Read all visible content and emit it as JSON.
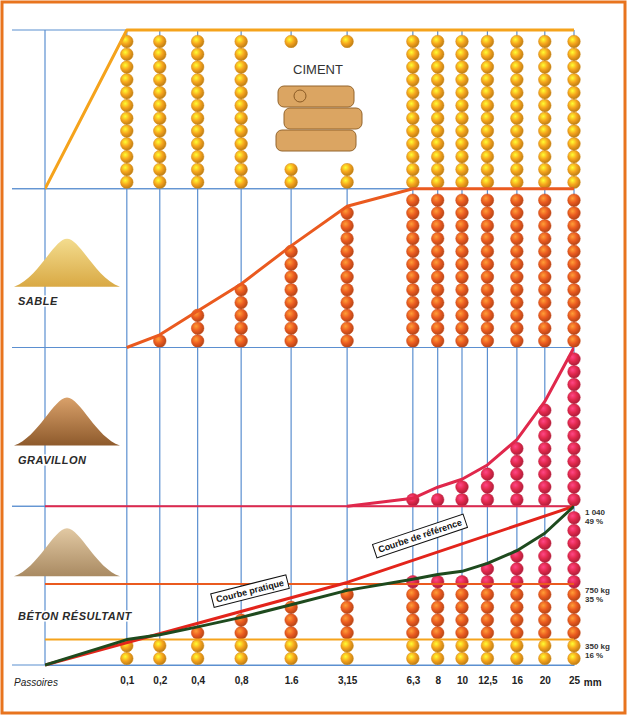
{
  "chart_data": {
    "type": "line",
    "xlabel": "Passoires",
    "xunit": "mm",
    "xlim": [
      0.01,
      25
    ],
    "xticks": [
      {
        "value": 0.1,
        "label": "0,1"
      },
      {
        "value": 0.2,
        "label": "0,2"
      },
      {
        "value": 0.4,
        "label": "0,4"
      },
      {
        "value": 0.8,
        "label": "0,8"
      },
      {
        "value": 1.6,
        "label": "1.6"
      },
      {
        "value": 3.15,
        "label": "3,15"
      },
      {
        "value": 6.3,
        "label": "6,3"
      },
      8,
      10,
      {
        "value": 12.5,
        "label": "12,5"
      },
      16,
      20,
      25
    ],
    "ylim": [
      0,
      100
    ],
    "yticks": [
      0,
      100
    ],
    "grid": true,
    "tick_labels": "x",
    "panels": [
      {
        "title": "CIMENT",
        "color": "#f5a31c",
        "marker": "ball",
        "x": [
          0.01,
          0.1,
          0.2,
          0.4,
          0.8,
          1.6,
          3.15,
          6.3,
          8,
          10,
          12.5,
          16,
          20,
          25
        ],
        "values": [
          0,
          100,
          100,
          100,
          100,
          100,
          100,
          100,
          100,
          100,
          100,
          100,
          100,
          100
        ]
      },
      {
        "title": "SABLE",
        "color": "#ea5a1f",
        "marker": "ball",
        "x": [
          0.1,
          0.2,
          0.4,
          0.8,
          1.6,
          3.15,
          6.3,
          8,
          10,
          12.5,
          16,
          20,
          25
        ],
        "values": [
          0,
          8,
          23,
          40,
          64,
          89,
          100,
          100,
          100,
          100,
          100,
          100,
          100
        ]
      },
      {
        "title": "GRAVILLON",
        "color": "#e0284c",
        "marker": "ball",
        "x": [
          0.1,
          0.2,
          0.4,
          0.8,
          1.6,
          3.15,
          6.3,
          8,
          10,
          12.5,
          16,
          20,
          25
        ],
        "values": [
          null,
          null,
          null,
          null,
          null,
          0,
          5,
          12,
          17,
          26,
          42,
          66,
          100
        ]
      },
      {
        "title": "BÉTON RÉSULTANT",
        "series": [
          {
            "name": "Courbe de référence",
            "color": "#e3241b",
            "x": [
              0.01,
              3.15,
              25
            ],
            "values": [
              0,
              52,
              100
            ]
          },
          {
            "name": "Courbe pratique",
            "color": "#1e4a1e",
            "marker": "ball",
            "x": [
              0.01,
              0.1,
              0.2,
              0.4,
              0.8,
              1.6,
              3.15,
              6.3,
              8,
              10,
              12.5,
              16,
              20,
              25
            ],
            "values": [
              0,
              16,
              19,
              24,
              30,
              38,
              47,
              54,
              57,
              59,
              64,
              72,
              83,
              100
            ]
          }
        ],
        "composition": {
          "masses": [
            "350 kg",
            "750 kg",
            "1 040"
          ],
          "values": [
            16,
            35,
            49
          ],
          "value_labels": [
            "16 %",
            "35 %",
            "49 %"
          ],
          "colors": [
            "#f5a31c",
            "#ea5a1f",
            "#e0284c"
          ]
        }
      }
    ]
  }
}
